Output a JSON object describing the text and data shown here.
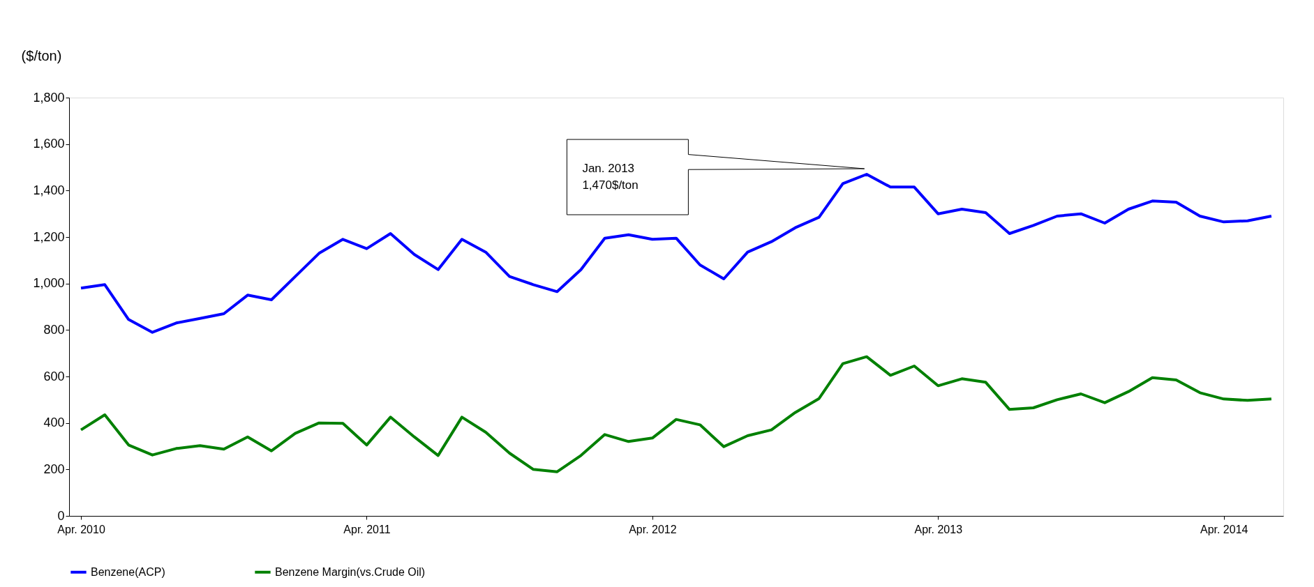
{
  "chart_data": {
    "type": "line",
    "ylabel": "($/ton)",
    "categories": [
      "Apr. 2010",
      null,
      null,
      null,
      null,
      null,
      null,
      null,
      null,
      null,
      null,
      null,
      "Apr. 2011",
      null,
      null,
      null,
      null,
      null,
      null,
      null,
      null,
      null,
      null,
      null,
      "Apr. 2012",
      null,
      null,
      null,
      null,
      null,
      null,
      null,
      null,
      null,
      null,
      null,
      "Apr. 2013",
      null,
      null,
      null,
      null,
      null,
      null,
      null,
      null,
      null,
      null,
      null,
      "Apr. 2014",
      null,
      null
    ],
    "series": [
      {
        "name": "Benzene(ACP)",
        "color": "#0000ff",
        "values": [
          980,
          995,
          845,
          790,
          830,
          850,
          870,
          950,
          930,
          1030,
          1130,
          1190,
          1150,
          1215,
          1125,
          1060,
          1190,
          1135,
          1030,
          995,
          965,
          1060,
          1195,
          1210,
          1190,
          1195,
          1080,
          1020,
          1135,
          1180,
          1240,
          1285,
          1430,
          1470,
          1415,
          1415,
          1300,
          1320,
          1305,
          1215,
          1250,
          1290,
          1300,
          1260,
          1320,
          1355,
          1350,
          1290,
          1265,
          1270,
          1290
        ]
      },
      {
        "name": "Benzene Margin(vs.Crude Oil)",
        "color": "#008000",
        "values": [
          370,
          435,
          305,
          262,
          290,
          302,
          287,
          340,
          280,
          355,
          400,
          398,
          305,
          425,
          340,
          260,
          425,
          360,
          270,
          200,
          190,
          260,
          350,
          320,
          335,
          415,
          392,
          298,
          345,
          370,
          445,
          505,
          655,
          685,
          605,
          645,
          560,
          590,
          575,
          458,
          465,
          500,
          525,
          487,
          535,
          595,
          585,
          530,
          503,
          497,
          503
        ]
      }
    ],
    "ylim": [
      0,
      1800
    ],
    "yticks": [
      {
        "value": 0,
        "label": "0"
      },
      {
        "value": 200,
        "label": "200"
      },
      {
        "value": 400,
        "label": "400"
      },
      {
        "value": 600,
        "label": "600"
      },
      {
        "value": 800,
        "label": "800"
      },
      {
        "value": 1000,
        "label": "1,000"
      },
      {
        "value": 1200,
        "label": "1,200"
      },
      {
        "value": 1400,
        "label": "1,400"
      },
      {
        "value": 1600,
        "label": "1,600"
      },
      {
        "value": 1800,
        "label": "1,800"
      }
    ],
    "grid": false,
    "legend": "bottom",
    "marker": "none",
    "line_style": "solid",
    "annotations": [
      "Jan. 2013\n1,470$/ton"
    ]
  }
}
